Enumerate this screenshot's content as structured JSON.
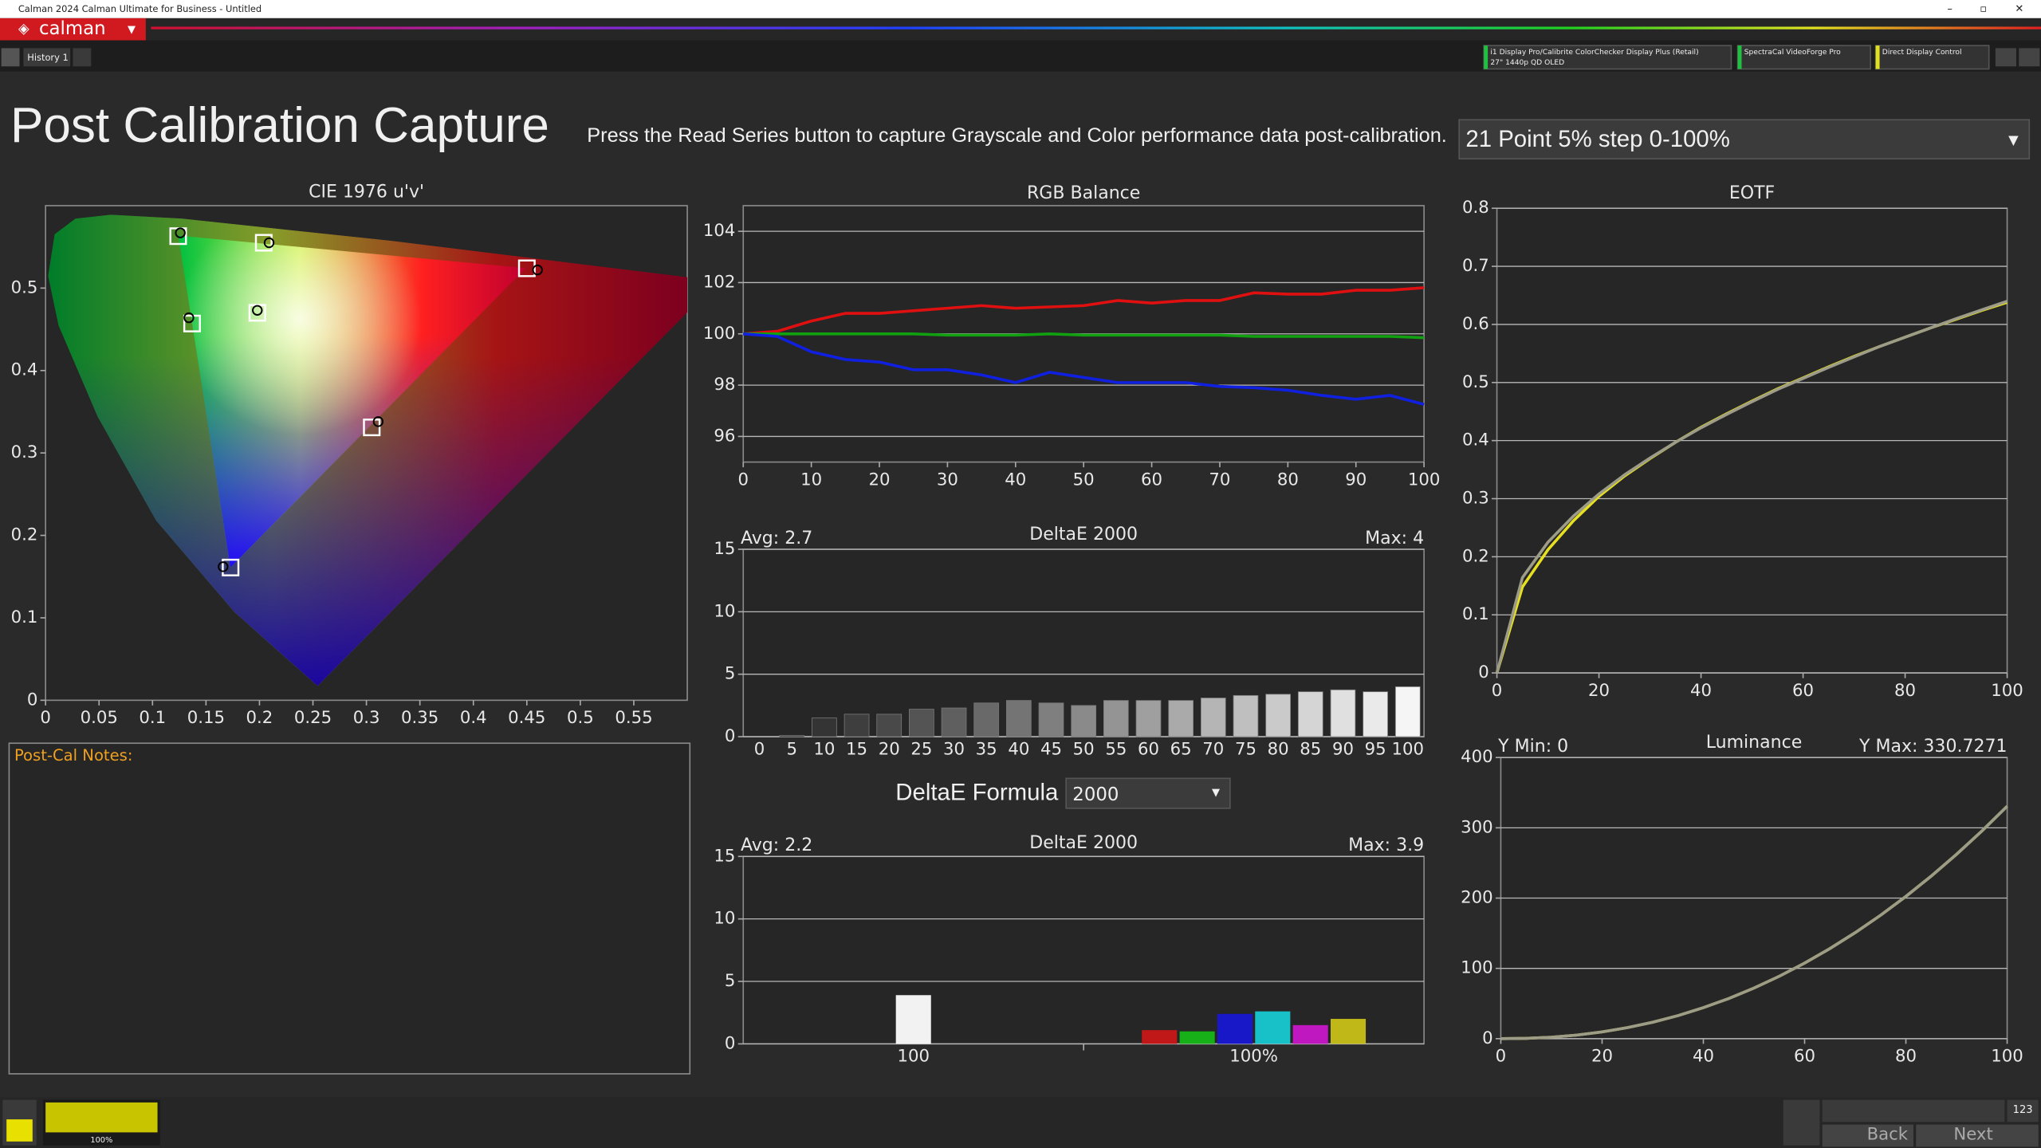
{
  "window": {
    "title": "Calman 2024 Calman Ultimate for Business  - Untitled",
    "logo": "calman",
    "tab": "History 1",
    "devices": [
      {
        "line1": "i1 Display Pro/Calibrite ColorChecker Display Plus (Retail)",
        "line2": "27\" 1440p QD OLED"
      },
      {
        "line1": "SpectraCal VideoForge Pro"
      },
      {
        "line1": "Direct Display Control"
      }
    ]
  },
  "header": {
    "title": "Post Calibration Capture",
    "instruction": "Press the Read Series button to capture Grayscale and Color performance data post-calibration.",
    "series_select": "21 Point 5% step 0-100%"
  },
  "notes_label": "Post-Cal Notes:",
  "formula": {
    "label": "DeltaE Formula",
    "value": "2000"
  },
  "footer": {
    "swatch_label": "100%",
    "counter": "123",
    "back": "Back",
    "next": "Next"
  },
  "chart_data": [
    {
      "type": "scatter",
      "title": "CIE 1976 u'v'",
      "xlim": [
        0,
        0.6
      ],
      "ylim": [
        0,
        0.6
      ],
      "xticks": [
        0,
        0.05,
        0.1,
        0.15,
        0.2,
        0.25,
        0.3,
        0.35,
        0.4,
        0.45,
        0.5,
        0.55
      ],
      "yticks": [
        0,
        0.1,
        0.2,
        0.3,
        0.4,
        0.5
      ],
      "grid": false,
      "series": [
        {
          "marker": "square",
          "color": "#ffffff",
          "x": [
            0.124,
            0.204,
            0.45,
            0.198,
            0.137,
            0.305,
            0.173
          ],
          "values": [
            0.563,
            0.555,
            0.524,
            0.47,
            0.457,
            0.331,
            0.161
          ]
        },
        {
          "marker": "circle",
          "color": "#000000",
          "x": [
            0.126,
            0.209,
            0.46,
            0.198,
            0.134,
            0.311,
            0.166
          ],
          "values": [
            0.567,
            0.555,
            0.522,
            0.473,
            0.464,
            0.338,
            0.162
          ]
        }
      ]
    },
    {
      "type": "line",
      "title": "RGB Balance",
      "x": [
        0,
        5,
        10,
        15,
        20,
        25,
        30,
        35,
        40,
        45,
        50,
        55,
        60,
        65,
        70,
        75,
        80,
        85,
        90,
        95,
        100
      ],
      "xlim": [
        0,
        100
      ],
      "xticks": [
        0,
        10,
        20,
        30,
        40,
        50,
        60,
        70,
        80,
        90,
        100
      ],
      "ylim": [
        95,
        105
      ],
      "yticks": [
        96,
        98,
        100,
        102,
        104
      ],
      "grid": true,
      "series": [
        {
          "color": "#e01010",
          "values": [
            100,
            100.1,
            100.5,
            100.8,
            100.8,
            100.9,
            101.0,
            101.1,
            101.0,
            101.05,
            101.1,
            101.3,
            101.2,
            101.3,
            101.3,
            101.6,
            101.55,
            101.55,
            101.7,
            101.7,
            101.8
          ]
        },
        {
          "color": "#10a010",
          "values": [
            100,
            100,
            100,
            100,
            100,
            100,
            99.95,
            99.95,
            99.95,
            100,
            99.95,
            99.95,
            99.95,
            99.95,
            99.95,
            99.9,
            99.9,
            99.9,
            99.9,
            99.9,
            99.85
          ]
        },
        {
          "color": "#1020e0",
          "values": [
            100,
            99.9,
            99.3,
            99.0,
            98.9,
            98.6,
            98.6,
            98.4,
            98.1,
            98.5,
            98.3,
            98.1,
            98.1,
            98.1,
            97.95,
            97.9,
            97.8,
            97.6,
            97.45,
            97.6,
            97.25
          ]
        }
      ]
    },
    {
      "type": "bar",
      "title": "DeltaE 2000",
      "annotations": {
        "left": "Avg: 2.7",
        "right": "Max: 4"
      },
      "categories": [
        "0",
        "5",
        "10",
        "15",
        "20",
        "25",
        "30",
        "35",
        "40",
        "45",
        "50",
        "55",
        "60",
        "65",
        "70",
        "75",
        "80",
        "85",
        "90",
        "95",
        "100"
      ],
      "values": [
        0,
        0.1,
        1.5,
        1.8,
        1.8,
        2.2,
        2.3,
        2.7,
        2.9,
        2.7,
        2.5,
        2.9,
        2.9,
        2.9,
        3.1,
        3.3,
        3.4,
        3.6,
        3.75,
        3.6,
        4.0
      ],
      "ylim": [
        0,
        15
      ],
      "yticks": [
        0,
        5,
        10,
        15
      ],
      "grid": true
    },
    {
      "type": "grouped_bar",
      "title": "DeltaE 2000",
      "annotations": {
        "left": "Avg: 2.2",
        "right": "Max: 3.9"
      },
      "groups": [
        {
          "label": "100",
          "values": [
            3.9
          ],
          "colors": [
            "#f2f2f2"
          ]
        },
        {
          "label": "100%",
          "values": [
            1.1,
            1.0,
            2.4,
            2.6,
            1.5,
            2.0
          ],
          "colors": [
            "#c01818",
            "#18b018",
            "#1818c8",
            "#18c0c8",
            "#c018c0",
            "#c0b818"
          ]
        }
      ],
      "ylim": [
        0,
        15
      ],
      "yticks": [
        0,
        5,
        10,
        15
      ],
      "grid": true
    },
    {
      "type": "line",
      "title": "EOTF",
      "x": [
        0,
        5,
        10,
        15,
        20,
        25,
        30,
        35,
        40,
        45,
        50,
        55,
        60,
        65,
        70,
        75,
        80,
        85,
        90,
        95,
        100
      ],
      "xlim": [
        0,
        100
      ],
      "xticks": [
        0,
        20,
        40,
        60,
        80,
        100
      ],
      "ylim": [
        0,
        0.8
      ],
      "yticks": [
        0,
        0.1,
        0.2,
        0.3,
        0.4,
        0.5,
        0.6,
        0.7,
        0.8
      ],
      "grid": true,
      "series": [
        {
          "color": "#e6e020",
          "values": [
            0,
            0.148,
            0.212,
            0.262,
            0.304,
            0.339,
            0.369,
            0.397,
            0.423,
            0.446,
            0.468,
            0.489,
            0.508,
            0.527,
            0.545,
            0.562,
            0.578,
            0.594,
            0.609,
            0.624,
            0.638
          ]
        },
        {
          "color": "#9c9c88",
          "values": [
            0,
            0.164,
            0.225,
            0.27,
            0.308,
            0.341,
            0.37,
            0.397,
            0.422,
            0.445,
            0.467,
            0.488,
            0.507,
            0.526,
            0.544,
            0.562,
            0.578,
            0.594,
            0.61,
            0.625,
            0.64
          ]
        }
      ]
    },
    {
      "type": "line",
      "title": "Luminance",
      "annotations": {
        "left": "Y Min: 0",
        "right": "Y Max: 330.7271"
      },
      "x": [
        0,
        5,
        10,
        15,
        20,
        25,
        30,
        35,
        40,
        45,
        50,
        55,
        60,
        65,
        70,
        75,
        80,
        85,
        90,
        95,
        100
      ],
      "xlim": [
        0,
        100
      ],
      "xticks": [
        0,
        20,
        40,
        60,
        80,
        100
      ],
      "ylim": [
        0,
        400
      ],
      "yticks": [
        0,
        100,
        200,
        300,
        400
      ],
      "grid": true,
      "series": [
        {
          "color": "#e6e020",
          "values": [
            0,
            0.5,
            2.1,
            5.1,
            9.6,
            15.7,
            23.4,
            32.8,
            44.1,
            57.1,
            72.0,
            88.8,
            107.5,
            128.2,
            150.9,
            175.6,
            202.4,
            231.3,
            262.3,
            295.4,
            330.7
          ]
        },
        {
          "color": "#9c9c88",
          "values": [
            0,
            0.5,
            2.1,
            5.1,
            9.6,
            15.7,
            23.4,
            32.8,
            44.1,
            57.1,
            72.0,
            88.8,
            107.5,
            128.2,
            150.9,
            175.6,
            202.4,
            231.3,
            262.3,
            295.4,
            330.7
          ]
        }
      ]
    }
  ]
}
